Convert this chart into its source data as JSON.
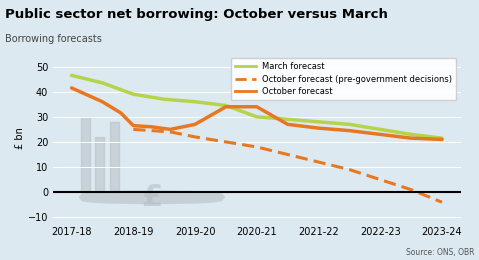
{
  "title": "Public sector net borrowing: October versus March",
  "subtitle": "Borrowing forecasts",
  "ylabel": "£ bn",
  "source": "Source: ONS, OBR",
  "background_color": "#dce9f0",
  "ylim": [
    -12,
    55
  ],
  "yticks": [
    -10,
    0,
    10,
    20,
    30,
    40,
    50
  ],
  "x_labels": [
    "2017-18",
    "2018-19",
    "2019-20",
    "2020-21",
    "2021-22",
    "2022-23",
    "2023-24"
  ],
  "march_forecast": {
    "x": [
      0,
      0.5,
      1,
      1.5,
      2,
      2.5,
      3,
      3.5,
      4,
      4.5,
      5,
      5.5,
      6
    ],
    "y": [
      46.5,
      43.5,
      39.0,
      37.0,
      36.0,
      34.5,
      30.0,
      29.0,
      28.0,
      27.0,
      25.0,
      23.0,
      21.5
    ],
    "color": "#b5d44b",
    "linewidth": 2.5,
    "label": "March forecast"
  },
  "october_pre": {
    "x": [
      1,
      1.3,
      1.6,
      2,
      2.5,
      3,
      3.5,
      4,
      4.5,
      5,
      5.5,
      6
    ],
    "y": [
      25.0,
      24.5,
      24.0,
      22.0,
      20.0,
      18.0,
      15.0,
      12.0,
      9.0,
      5.0,
      1.0,
      -4.0
    ],
    "color": "#e87722",
    "linewidth": 2.2,
    "linestyle": "--",
    "label": "October forecast (pre-government decisions)"
  },
  "october_forecast": {
    "x": [
      0,
      0.5,
      0.8,
      1,
      1.3,
      1.6,
      2,
      2.5,
      3,
      3.5,
      4,
      4.5,
      5,
      5.5,
      6
    ],
    "y": [
      41.5,
      36.0,
      31.5,
      26.5,
      26.0,
      25.0,
      27.0,
      34.0,
      34.0,
      27.0,
      25.5,
      24.5,
      23.0,
      21.5,
      21.0
    ],
    "color": "#e87722",
    "linewidth": 2.5,
    "label": "October forecast"
  },
  "legend_box_color": "white",
  "legend_alpha": 0.9
}
